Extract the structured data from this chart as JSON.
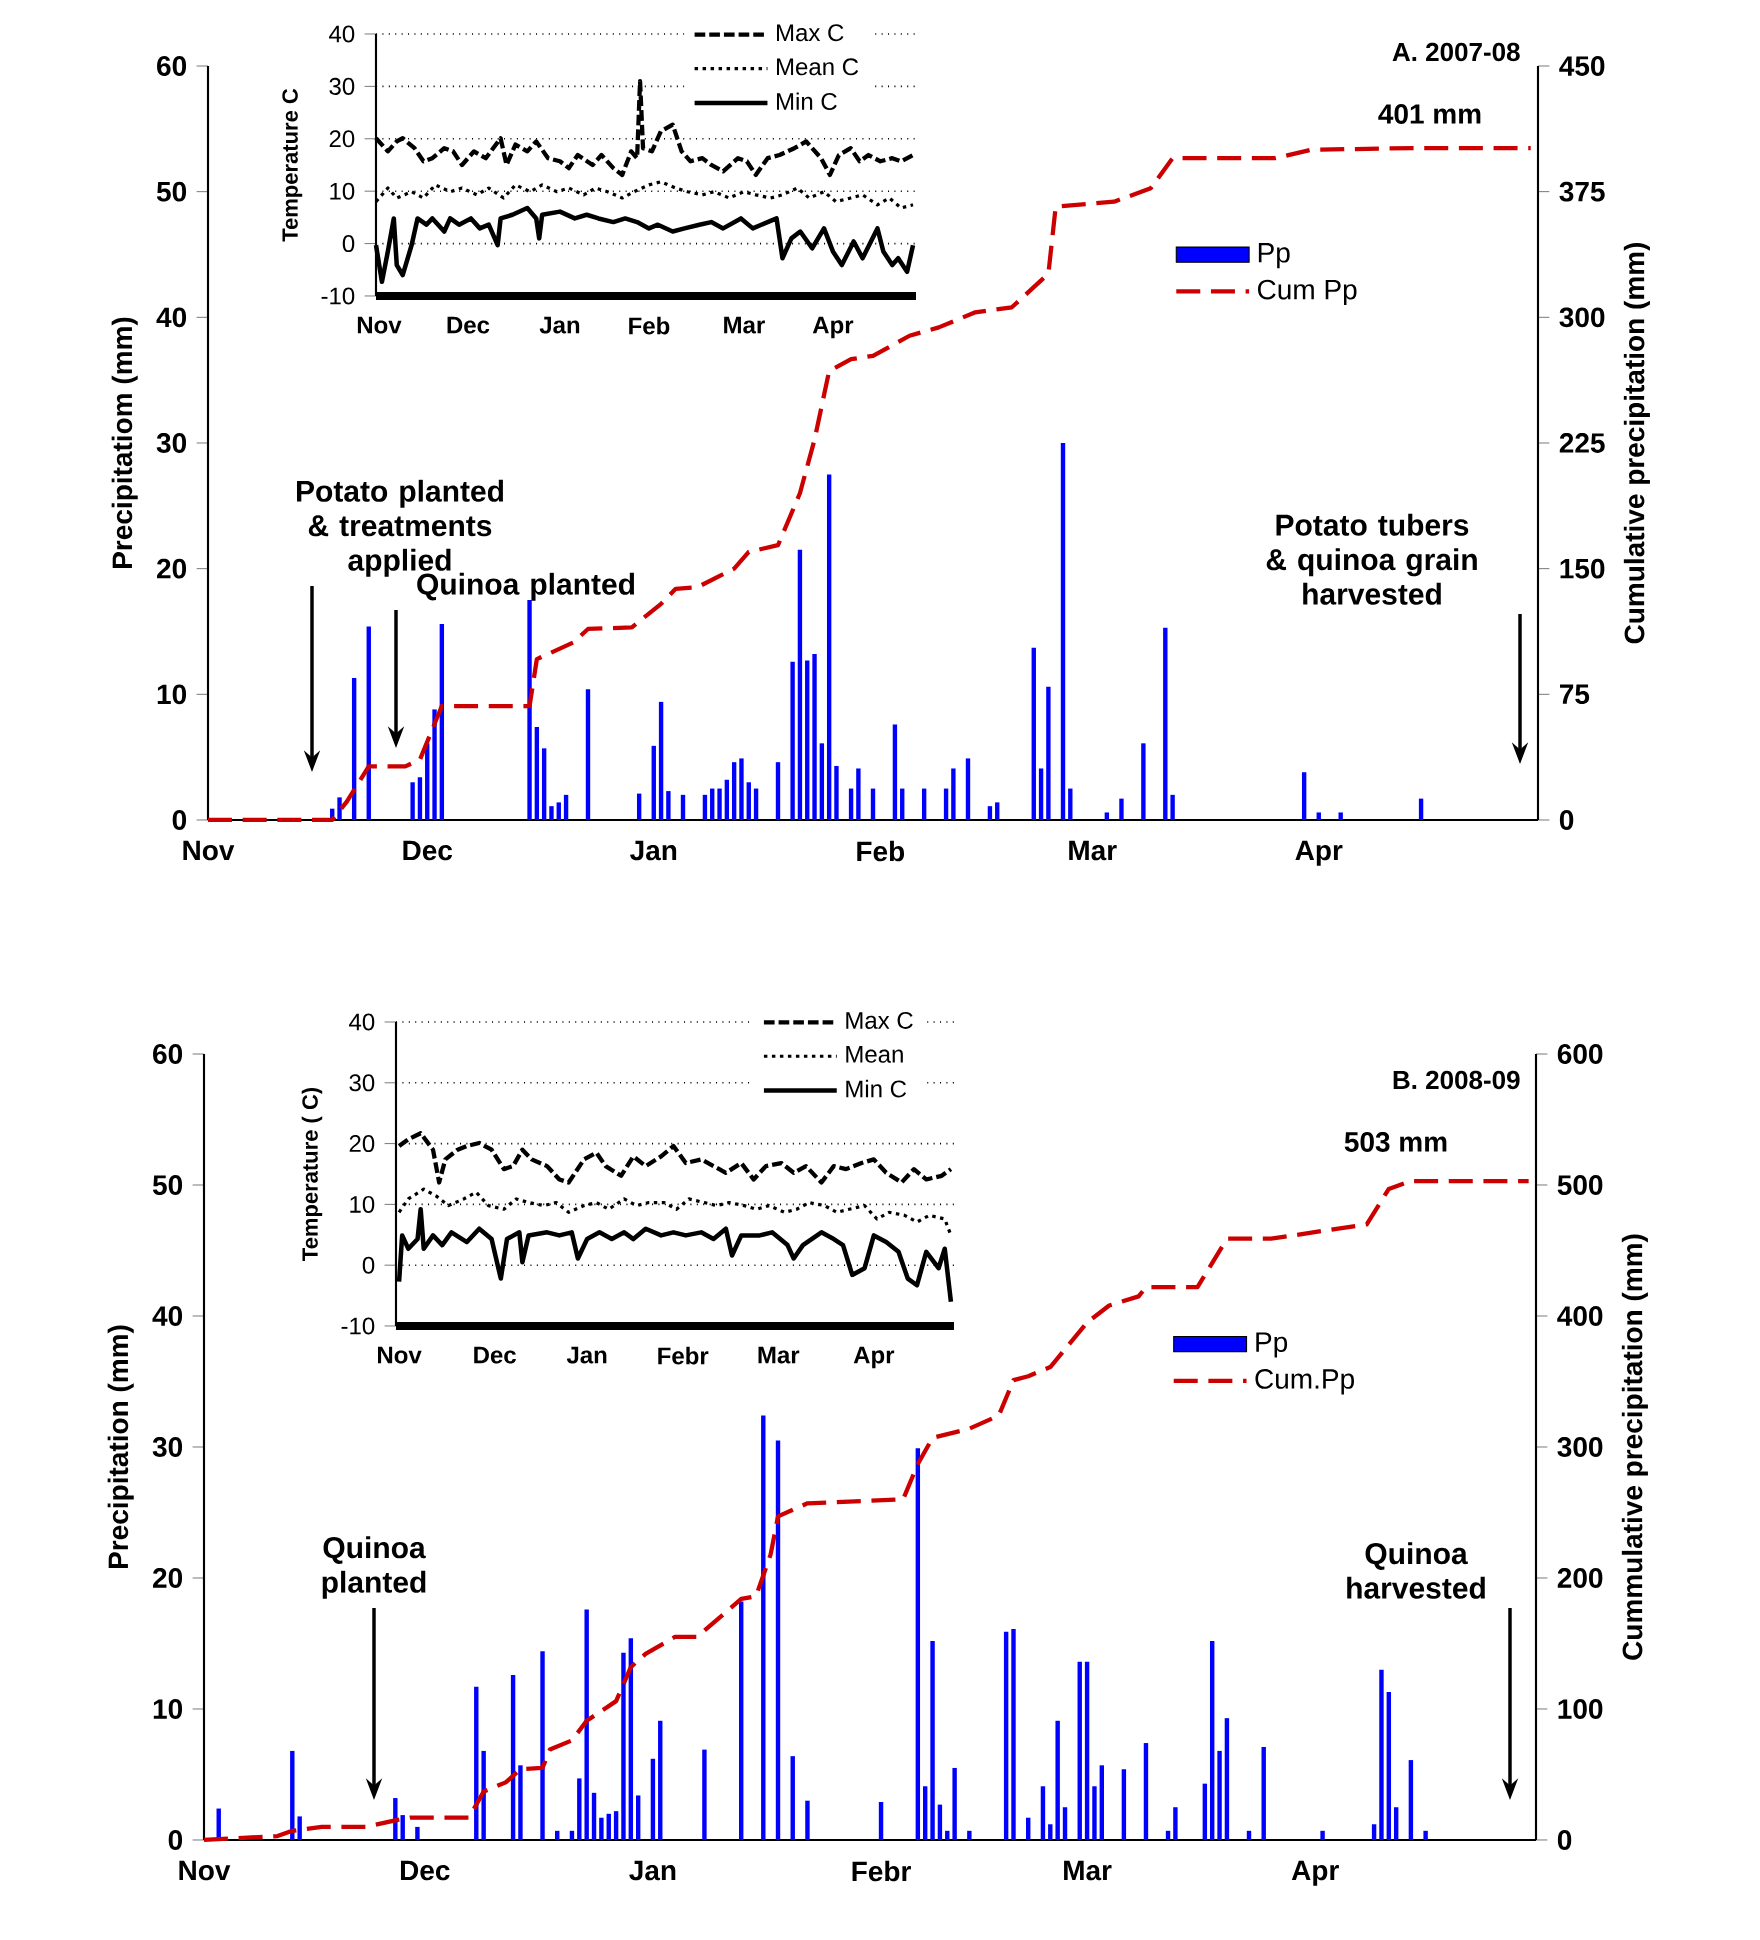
{
  "chart_data": [
    {
      "type": "bar",
      "title": "A. 2007-08",
      "ylabel": "Precipitatiom (mm)",
      "y2label": "Cumulative precipitation (mm)",
      "xlim": [
        "2007-11-01",
        "2008-05-01"
      ],
      "xticks": [
        {
          "value": "2007-11-01",
          "label": "Nov"
        },
        {
          "value": "2007-12-01",
          "label": "Dec"
        },
        {
          "value": "2008-01-01",
          "label": "Jan"
        },
        {
          "value": "2008-02-01",
          "label": "Feb"
        },
        {
          "value": "2008-03-01",
          "label": "Mar"
        },
        {
          "value": "2008-04-01",
          "label": "Apr"
        }
      ],
      "ylim": [
        0,
        60
      ],
      "yticks": [
        0,
        10,
        20,
        30,
        40,
        50,
        60
      ],
      "y2lim": [
        0,
        450
      ],
      "y2ticks": [
        0,
        75,
        150,
        225,
        300,
        375,
        450
      ],
      "legend": "top right",
      "annotations": [
        "Potato planted & treatments applied",
        "Quinoa planted",
        "Potato tubers & quinoa grain harvested",
        "401 mm"
      ],
      "series": [
        {
          "name": "Pp",
          "color": "#0000ff",
          "x": [
            "2007-11-18",
            "2007-11-19",
            "2007-11-21",
            "2007-11-23",
            "2007-11-29",
            "2007-11-30",
            "2007-12-01",
            "2007-12-02",
            "2007-12-03",
            "2007-12-15",
            "2007-12-16",
            "2007-12-17",
            "2007-12-18",
            "2007-12-19",
            "2007-12-20",
            "2007-12-23",
            "2007-12-30",
            "2008-01-01",
            "2008-01-02",
            "2008-01-03",
            "2008-01-05",
            "2008-01-08",
            "2008-01-09",
            "2008-01-10",
            "2008-01-11",
            "2008-01-12",
            "2008-01-13",
            "2008-01-14",
            "2008-01-15",
            "2008-01-18",
            "2008-01-20",
            "2008-01-21",
            "2008-01-22",
            "2008-01-23",
            "2008-01-24",
            "2008-01-25",
            "2008-01-26",
            "2008-01-28",
            "2008-01-29",
            "2008-01-31",
            "2008-02-03",
            "2008-02-04",
            "2008-02-07",
            "2008-02-10",
            "2008-02-11",
            "2008-02-13",
            "2008-02-16",
            "2008-02-17",
            "2008-02-22",
            "2008-02-23",
            "2008-02-24",
            "2008-02-26",
            "2008-02-27",
            "2008-03-03",
            "2008-03-05",
            "2008-03-08",
            "2008-03-11",
            "2008-03-12",
            "2008-03-30",
            "2008-04-01",
            "2008-04-04",
            "2008-04-15"
          ],
          "values": [
            0.9,
            1.8,
            11.3,
            15.4,
            3,
            3.4,
            6.1,
            8.8,
            15.6,
            17.5,
            7.4,
            5.7,
            1.1,
            1.4,
            2,
            10.4,
            2.1,
            5.9,
            9.4,
            2.3,
            2,
            2,
            2.5,
            2.5,
            3.2,
            4.6,
            4.9,
            3,
            2.5,
            4.6,
            12.6,
            21.5,
            12.7,
            13.2,
            6.1,
            27.5,
            4.3,
            2.5,
            4.1,
            2.5,
            7.6,
            2.5,
            2.5,
            2.5,
            4.1,
            4.9,
            1.1,
            1.4,
            13.7,
            4.1,
            10.6,
            30,
            2.5,
            0.6,
            1.7,
            6.1,
            15.3,
            2,
            3.8,
            0.6,
            0.6,
            1.7
          ]
        },
        {
          "name": "Cum Pp",
          "type": "line",
          "axis": "y2",
          "color": "#cc0000",
          "line_style": "dashed",
          "x": [
            "2007-11-01",
            "2007-11-18",
            "2007-11-20",
            "2007-11-23",
            "2007-11-28",
            "2007-11-30",
            "2007-12-03",
            "2007-12-15",
            "2007-12-16",
            "2007-12-21",
            "2007-12-23",
            "2007-12-29",
            "2008-01-02",
            "2008-01-04",
            "2008-01-07",
            "2008-01-12",
            "2008-01-14",
            "2008-01-18",
            "2008-01-21",
            "2008-01-23",
            "2008-01-25",
            "2008-01-28",
            "2008-01-31",
            "2008-02-05",
            "2008-02-09",
            "2008-02-14",
            "2008-02-19",
            "2008-02-22",
            "2008-02-24",
            "2008-02-25",
            "2008-03-04",
            "2008-03-09",
            "2008-03-12",
            "2008-03-26",
            "2008-03-31",
            "2008-04-14",
            "2008-04-30"
          ],
          "values": [
            0,
            0,
            11,
            32,
            32,
            36,
            68,
            68,
            96,
            106,
            114,
            115,
            129,
            138,
            139,
            150,
            160,
            164,
            195,
            227,
            268,
            275,
            277,
            289,
            294,
            303,
            306,
            318,
            326,
            366,
            369,
            377,
            395,
            395,
            400,
            401,
            401
          ]
        }
      ]
    },
    {
      "type": "line",
      "ylabel": "Temperature C",
      "xlim": [
        "2007-11-01",
        "2008-05-01"
      ],
      "xticks": [
        {
          "value": "2007-11-02",
          "label": "Nov"
        },
        {
          "value": "2007-12-02",
          "label": "Dec"
        },
        {
          "value": "2008-01-02",
          "label": "Jan"
        },
        {
          "value": "2008-02-01",
          "label": "Feb"
        },
        {
          "value": "2008-03-04",
          "label": "Mar"
        },
        {
          "value": "2008-04-03",
          "label": "Apr"
        }
      ],
      "ylim": [
        -10,
        40
      ],
      "yticks": [
        -10,
        0,
        10,
        20,
        30,
        40
      ],
      "grid": "y",
      "legend": "top right",
      "series": [
        {
          "name": "Max C",
          "color": "#000000",
          "line_style": "dashed",
          "x": [
            "2007-11-01",
            "2007-11-05",
            "2007-11-08",
            "2007-11-10",
            "2007-11-14",
            "2007-11-17",
            "2007-11-20",
            "2007-11-24",
            "2007-11-27",
            "2007-11-30",
            "2007-12-04",
            "2007-12-08",
            "2007-12-13",
            "2007-12-15",
            "2007-12-18",
            "2007-12-22",
            "2007-12-25",
            "2007-12-29",
            "2008-01-02",
            "2008-01-05",
            "2008-01-08",
            "2008-01-13",
            "2008-01-16",
            "2008-01-20",
            "2008-01-23",
            "2008-01-26",
            "2008-01-28",
            "2008-01-29",
            "2008-01-30",
            "2008-02-02",
            "2008-02-05",
            "2008-02-09",
            "2008-02-12",
            "2008-02-15",
            "2008-02-19",
            "2008-02-22",
            "2008-02-26",
            "2008-03-02",
            "2008-03-05",
            "2008-03-08",
            "2008-03-12",
            "2008-03-16",
            "2008-03-21",
            "2008-03-25",
            "2008-03-30",
            "2008-04-02",
            "2008-04-05",
            "2008-04-09",
            "2008-04-12",
            "2008-04-15",
            "2008-04-19",
            "2008-04-23",
            "2008-04-26",
            "2008-04-30"
          ],
          "values": [
            20.1,
            17.6,
            19.5,
            20.1,
            18.2,
            15.7,
            16.3,
            18.2,
            17.6,
            15.0,
            17.6,
            16.3,
            20.1,
            15.0,
            18.9,
            17.6,
            19.5,
            16.3,
            15.7,
            14.4,
            16.9,
            15.0,
            16.9,
            14.4,
            13.1,
            17.6,
            16.3,
            31.0,
            18.2,
            17.6,
            21.4,
            22.7,
            17.6,
            15.7,
            16.3,
            15.0,
            13.8,
            16.3,
            15.7,
            13.1,
            16.3,
            16.9,
            18.2,
            19.5,
            16.3,
            13.1,
            16.9,
            18.2,
            15.7,
            16.9,
            15.7,
            16.3,
            15.7,
            16.9
          ]
        },
        {
          "name": "Mean C",
          "color": "#000000",
          "line_style": "dotted",
          "x": [
            "2007-11-01",
            "2007-11-05",
            "2007-11-08",
            "2007-11-13",
            "2007-11-17",
            "2007-11-21",
            "2007-11-26",
            "2007-11-30",
            "2007-12-05",
            "2007-12-09",
            "2007-12-14",
            "2007-12-18",
            "2007-12-23",
            "2007-12-27",
            "2008-01-01",
            "2008-01-05",
            "2008-01-10",
            "2008-01-14",
            "2008-01-18",
            "2008-01-23",
            "2008-01-27",
            "2008-02-01",
            "2008-02-05",
            "2008-02-10",
            "2008-02-14",
            "2008-02-19",
            "2008-02-23",
            "2008-02-28",
            "2008-03-04",
            "2008-03-08",
            "2008-03-13",
            "2008-03-17",
            "2008-03-22",
            "2008-03-26",
            "2008-03-31",
            "2008-04-04",
            "2008-04-09",
            "2008-04-13",
            "2008-04-18",
            "2008-04-22",
            "2008-04-26",
            "2008-04-30"
          ],
          "values": [
            8.0,
            10.6,
            8.7,
            9.9,
            8.7,
            11.2,
            9.9,
            10.6,
            9.3,
            10.6,
            8.7,
            11.2,
            9.9,
            11.2,
            9.9,
            10.6,
            9.3,
            10.6,
            9.9,
            8.7,
            9.9,
            11.2,
            11.8,
            10.6,
            9.9,
            9.3,
            9.9,
            8.7,
            9.9,
            9.3,
            8.7,
            9.3,
            10.6,
            8.7,
            9.9,
            8.0,
            8.7,
            9.3,
            7.4,
            8.7,
            6.8,
            7.4
          ]
        },
        {
          "name": "Min C",
          "color": "#000000",
          "line_style": "solid",
          "x": [
            "2007-11-01",
            "2007-11-03",
            "2007-11-05",
            "2007-11-07",
            "2007-11-08",
            "2007-11-10",
            "2007-11-13",
            "2007-11-15",
            "2007-11-18",
            "2007-11-20",
            "2007-11-24",
            "2007-11-26",
            "2007-11-29",
            "2007-12-03",
            "2007-12-06",
            "2007-12-09",
            "2007-12-12",
            "2007-12-13",
            "2007-12-17",
            "2007-12-22",
            "2007-12-25",
            "2007-12-26",
            "2007-12-27",
            "2008-01-02",
            "2008-01-07",
            "2008-01-11",
            "2008-01-15",
            "2008-01-20",
            "2008-01-24",
            "2008-01-28",
            "2008-02-01",
            "2008-02-04",
            "2008-02-09",
            "2008-02-13",
            "2008-02-18",
            "2008-02-22",
            "2008-02-26",
            "2008-03-03",
            "2008-03-07",
            "2008-03-12",
            "2008-03-15",
            "2008-03-17",
            "2008-03-20",
            "2008-03-23",
            "2008-03-27",
            "2008-03-31",
            "2008-04-03",
            "2008-04-06",
            "2008-04-10",
            "2008-04-13",
            "2008-04-18",
            "2008-04-20",
            "2008-04-23",
            "2008-04-25",
            "2008-04-28",
            "2008-04-30"
          ],
          "values": [
            -0.3,
            -7.3,
            -1.5,
            4.8,
            -4.1,
            -6.0,
            -0.3,
            4.8,
            3.6,
            4.8,
            2.3,
            4.8,
            3.6,
            4.8,
            2.9,
            3.6,
            -0.3,
            4.8,
            5.5,
            6.8,
            4.8,
            1.0,
            5.5,
            6.1,
            4.8,
            5.5,
            4.8,
            4.1,
            4.8,
            4.1,
            2.9,
            3.6,
            2.3,
            2.9,
            3.6,
            4.1,
            2.9,
            4.8,
            2.9,
            4.1,
            4.8,
            -2.8,
            1.0,
            2.3,
            -0.9,
            2.9,
            -1.5,
            -4.1,
            0.4,
            -2.8,
            2.9,
            -1.5,
            -4.1,
            -2.8,
            -5.4,
            -0.3
          ]
        }
      ]
    },
    {
      "type": "bar",
      "title": "B. 2008-09",
      "ylabel": "Precipitation (mm)",
      "y2label": "Cummulative precipitation (mm)",
      "xlim": [
        "2008-11-01",
        "2009-05-01"
      ],
      "xticks": [
        {
          "value": "2008-11-01",
          "label": "Nov"
        },
        {
          "value": "2008-12-01",
          "label": "Dec"
        },
        {
          "value": "2009-01-01",
          "label": "Jan"
        },
        {
          "value": "2009-02-01",
          "label": "Febr"
        },
        {
          "value": "2009-03-01",
          "label": "Mar"
        },
        {
          "value": "2009-04-01",
          "label": "Apr"
        }
      ],
      "ylim": [
        0,
        60
      ],
      "yticks": [
        0,
        10,
        20,
        30,
        40,
        50,
        60
      ],
      "y2lim": [
        0,
        600
      ],
      "y2ticks": [
        0,
        100,
        200,
        300,
        400,
        500,
        600
      ],
      "legend": "right",
      "annotations": [
        "Quinoa planted",
        "Quinoa harvested",
        "503 mm"
      ],
      "series": [
        {
          "name": "Pp",
          "color": "#0000ff",
          "x": [
            "2008-11-03",
            "2008-11-08",
            "2008-11-13",
            "2008-11-14",
            "2008-11-27",
            "2008-11-28",
            "2008-11-30",
            "2008-12-08",
            "2008-12-09",
            "2008-12-13",
            "2008-12-14",
            "2008-12-17",
            "2008-12-19",
            "2008-12-21",
            "2008-12-22",
            "2008-12-23",
            "2008-12-24",
            "2008-12-25",
            "2008-12-26",
            "2008-12-27",
            "2008-12-28",
            "2008-12-29",
            "2008-12-30",
            "2009-01-01",
            "2009-01-02",
            "2009-01-08",
            "2009-01-13",
            "2009-01-16",
            "2009-01-18",
            "2009-01-20",
            "2009-01-22",
            "2009-02-01",
            "2009-02-06",
            "2009-02-07",
            "2009-02-08",
            "2009-02-09",
            "2009-02-10",
            "2009-02-11",
            "2009-02-13",
            "2009-02-18",
            "2009-02-19",
            "2009-02-21",
            "2009-02-23",
            "2009-02-24",
            "2009-02-25",
            "2009-02-26",
            "2009-02-28",
            "2009-03-01",
            "2009-03-02",
            "2009-03-03",
            "2009-03-06",
            "2009-03-09",
            "2009-03-12",
            "2009-03-13",
            "2009-03-17",
            "2009-03-18",
            "2009-03-19",
            "2009-03-20",
            "2009-03-23",
            "2009-03-25",
            "2009-04-02",
            "2009-04-09",
            "2009-04-10",
            "2009-04-11",
            "2009-04-12",
            "2009-04-14",
            "2009-04-16"
          ],
          "values": [
            2.4,
            null,
            6.8,
            1.8,
            3.2,
            1.9,
            1.0,
            11.7,
            6.8,
            12.6,
            5.7,
            14.4,
            0.7,
            0.7,
            4.7,
            17.6,
            3.6,
            1.7,
            2.0,
            2.2,
            14.3,
            15.4,
            3.4,
            6.2,
            9.1,
            6.9,
            18.2,
            32.4,
            30.5,
            6.4,
            3.0,
            2.9,
            29.9,
            4.1,
            15.2,
            2.7,
            0.7,
            5.5,
            0.7,
            15.9,
            16.1,
            1.7,
            4.1,
            1.2,
            9.1,
            2.5,
            13.6,
            13.6,
            4.1,
            5.7,
            5.4,
            7.4,
            0.7,
            2.5,
            4.3,
            15.2,
            6.8,
            9.3,
            0.7,
            7.1,
            0.7,
            1.2,
            13.0,
            11.3,
            2.5,
            6.1,
            0.7
          ]
        },
        {
          "name": "Cum.Pp",
          "type": "line",
          "axis": "y2",
          "color": "#cc0000",
          "line_style": "dashed",
          "x": [
            "2008-11-01",
            "2008-11-11",
            "2008-11-13",
            "2008-11-17",
            "2008-11-23",
            "2008-11-27",
            "2008-11-29",
            "2008-12-07",
            "2008-12-09",
            "2008-12-12",
            "2008-12-14",
            "2008-12-17",
            "2008-12-18",
            "2008-12-21",
            "2008-12-23",
            "2008-12-27",
            "2008-12-29",
            "2008-12-31",
            "2009-01-04",
            "2009-01-07",
            "2009-01-13",
            "2009-01-15",
            "2009-01-17",
            "2009-01-18",
            "2009-01-22",
            "2009-02-04",
            "2009-02-06",
            "2009-02-08",
            "2009-02-13",
            "2009-02-17",
            "2009-02-19",
            "2009-02-21",
            "2009-02-24",
            "2009-03-01",
            "2009-03-04",
            "2009-03-08",
            "2009-03-09",
            "2009-03-16",
            "2009-03-20",
            "2009-03-26",
            "2009-04-08",
            "2009-04-11",
            "2009-04-14",
            "2009-04-30"
          ],
          "values": [
            0,
            3,
            7,
            10,
            10,
            15,
            17,
            17,
            37,
            44,
            54,
            55,
            69,
            76,
            91,
            106,
            132,
            142,
            155,
            155,
            184,
            186,
            218,
            247,
            257,
            260,
            287,
            307,
            314,
            324,
            351,
            354,
            361,
            395,
            408,
            415,
            422,
            422,
            459,
            459,
            470,
            497,
            503,
            503
          ]
        }
      ]
    },
    {
      "type": "line",
      "ylabel": "Temperature ( C)",
      "xlim": [
        "2008-11-01",
        "2009-05-01"
      ],
      "xticks": [
        {
          "value": "2008-11-02",
          "label": "Nov"
        },
        {
          "value": "2008-12-03",
          "label": "Dec"
        },
        {
          "value": "2009-01-02",
          "label": "Jan"
        },
        {
          "value": "2009-02-02",
          "label": "Febr"
        },
        {
          "value": "2009-03-05",
          "label": "Mar"
        },
        {
          "value": "2009-04-05",
          "label": "Apr"
        }
      ],
      "ylim": [
        -10,
        40
      ],
      "yticks": [
        -10,
        0,
        10,
        20,
        30,
        40
      ],
      "grid": "y",
      "legend": "top right",
      "series": [
        {
          "name": "Max C",
          "color": "#000000",
          "line_style": "dashed",
          "x": [
            "2008-11-02",
            "2008-11-05",
            "2008-11-09",
            "2008-11-13",
            "2008-11-15",
            "2008-11-17",
            "2008-11-21",
            "2008-11-24",
            "2008-11-28",
            "2008-12-02",
            "2008-12-06",
            "2008-12-09",
            "2008-12-12",
            "2008-12-15",
            "2008-12-20",
            "2008-12-24",
            "2008-12-27",
            "2009-01-01",
            "2009-01-05",
            "2009-01-08",
            "2009-01-13",
            "2009-01-17",
            "2009-01-21",
            "2009-01-26",
            "2009-01-30",
            "2009-02-03",
            "2009-02-08",
            "2009-02-12",
            "2009-02-16",
            "2009-02-21",
            "2009-02-25",
            "2009-03-01",
            "2009-03-06",
            "2009-03-10",
            "2009-03-14",
            "2009-03-19",
            "2009-03-23",
            "2009-03-27",
            "2009-04-01",
            "2009-04-05",
            "2009-04-09",
            "2009-04-14",
            "2009-04-18",
            "2009-04-22",
            "2009-04-27",
            "2009-04-30"
          ],
          "values": [
            19.6,
            20.7,
            21.7,
            19.0,
            13.6,
            17.4,
            19.0,
            19.6,
            20.1,
            19.0,
            15.8,
            16.3,
            19.0,
            17.4,
            16.3,
            14.1,
            13.6,
            17.4,
            18.5,
            16.3,
            14.7,
            17.9,
            16.3,
            17.9,
            19.6,
            16.8,
            17.4,
            16.3,
            15.2,
            16.8,
            14.1,
            16.3,
            16.8,
            15.2,
            16.3,
            13.6,
            16.3,
            15.8,
            16.8,
            17.4,
            15.2,
            13.6,
            15.8,
            14.1,
            14.7,
            15.8
          ]
        },
        {
          "name": "Mean",
          "color": "#000000",
          "line_style": "dotted",
          "x": [
            "2008-11-02",
            "2008-11-05",
            "2008-11-10",
            "2008-11-14",
            "2008-11-18",
            "2008-11-23",
            "2008-11-27",
            "2008-12-01",
            "2008-12-06",
            "2008-12-10",
            "2008-12-14",
            "2008-12-19",
            "2008-12-23",
            "2008-12-27",
            "2009-01-01",
            "2009-01-05",
            "2009-01-09",
            "2009-01-14",
            "2009-01-18",
            "2009-01-22",
            "2009-01-27",
            "2009-01-31",
            "2009-02-04",
            "2009-02-09",
            "2009-02-13",
            "2009-02-17",
            "2009-02-22",
            "2009-02-26",
            "2009-03-02",
            "2009-03-07",
            "2009-03-11",
            "2009-03-15",
            "2009-03-20",
            "2009-03-24",
            "2009-03-28",
            "2009-04-02",
            "2009-04-06",
            "2009-04-10",
            "2009-04-15",
            "2009-04-19",
            "2009-04-23",
            "2009-04-28",
            "2009-04-30"
          ],
          "values": [
            8.7,
            10.9,
            12.5,
            11.4,
            9.8,
            10.9,
            12.0,
            9.8,
            9.2,
            10.9,
            10.3,
            9.8,
            10.3,
            8.7,
            9.8,
            10.3,
            9.2,
            10.9,
            9.8,
            10.3,
            10.3,
            9.2,
            10.9,
            10.3,
            9.8,
            10.3,
            9.8,
            9.2,
            9.8,
            8.7,
            9.2,
            10.3,
            9.8,
            8.7,
            9.2,
            9.8,
            7.6,
            8.7,
            8.2,
            7.1,
            8.2,
            7.6,
            4.9
          ]
        },
        {
          "name": "Min C",
          "color": "#000000",
          "line_style": "solid",
          "x": [
            "2008-11-02",
            "2008-11-03",
            "2008-11-05",
            "2008-11-08",
            "2008-11-09",
            "2008-11-10",
            "2008-11-13",
            "2008-11-16",
            "2008-11-19",
            "2008-11-24",
            "2008-11-28",
            "2008-12-02",
            "2008-12-05",
            "2008-12-07",
            "2008-12-11",
            "2008-12-12",
            "2008-12-14",
            "2008-12-20",
            "2008-12-24",
            "2008-12-28",
            "2008-12-30",
            "2009-01-02",
            "2009-01-06",
            "2009-01-10",
            "2009-01-14",
            "2009-01-17",
            "2009-01-21",
            "2009-01-26",
            "2009-01-30",
            "2009-02-03",
            "2009-02-08",
            "2009-02-12",
            "2009-02-16",
            "2009-02-18",
            "2009-02-21",
            "2009-02-27",
            "2009-03-03",
            "2009-03-08",
            "2009-03-10",
            "2009-03-13",
            "2009-03-19",
            "2009-03-23",
            "2009-03-26",
            "2009-03-29",
            "2009-04-02",
            "2009-04-05",
            "2009-04-09",
            "2009-04-13",
            "2009-04-16",
            "2009-04-19",
            "2009-04-22",
            "2009-04-26",
            "2009-04-28",
            "2009-04-30"
          ],
          "values": [
            -2.7,
            4.9,
            2.7,
            4.3,
            9.2,
            2.7,
            4.9,
            3.3,
            5.4,
            3.8,
            6.0,
            4.3,
            -2.2,
            4.3,
            5.4,
            0.5,
            4.9,
            5.4,
            4.9,
            5.4,
            1.1,
            4.3,
            5.4,
            4.3,
            5.4,
            4.3,
            6.0,
            4.9,
            5.4,
            4.9,
            5.4,
            4.3,
            6.0,
            1.6,
            4.9,
            4.9,
            5.4,
            3.3,
            1.1,
            3.3,
            5.4,
            4.3,
            3.3,
            -1.6,
            -0.5,
            4.9,
            3.8,
            2.2,
            -2.2,
            -3.3,
            2.2,
            -0.5,
            2.7,
            -6.0
          ]
        }
      ]
    }
  ]
}
